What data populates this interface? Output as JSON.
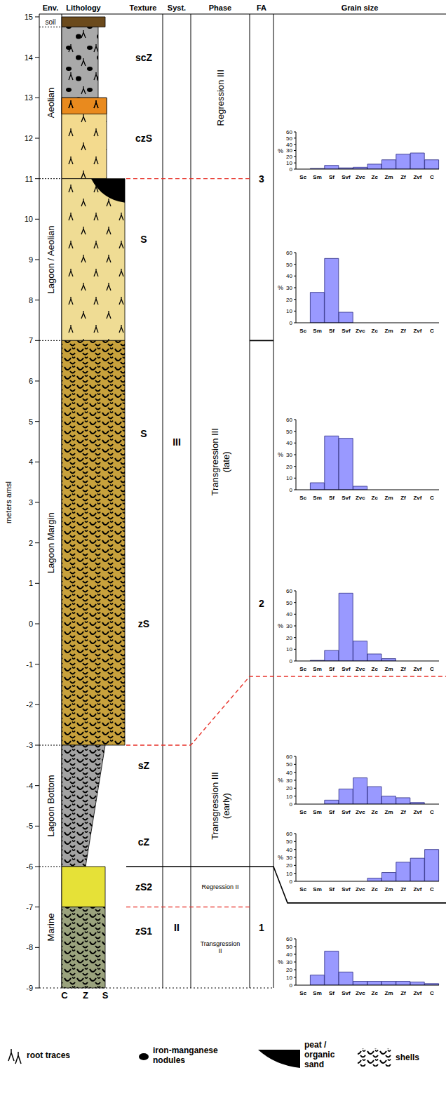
{
  "header": [
    "Env.",
    "Lithology",
    "Texture",
    "Syst.",
    "Phase",
    "FA",
    "Grain size"
  ],
  "axis": {
    "label": "meters amsl",
    "ylim": [
      -9,
      15
    ],
    "yticks": [
      -9,
      -8,
      -7,
      -6,
      -5,
      -4,
      -3,
      -2,
      -1,
      0,
      1,
      2,
      3,
      4,
      5,
      6,
      7,
      8,
      9,
      10,
      11,
      12,
      13,
      14,
      15
    ]
  },
  "environments": [
    {
      "label": "soil",
      "top": 15,
      "bottom": 14.75
    },
    {
      "label": "Aeolian",
      "top": 14.75,
      "bottom": 11
    },
    {
      "label": "Lagoon / Aeolian",
      "top": 11,
      "bottom": 7
    },
    {
      "label": "Lagoon Margin",
      "top": 7,
      "bottom": -3
    },
    {
      "label": "Lagoon Bottom",
      "top": -3,
      "bottom": -6
    },
    {
      "label": "Marine",
      "top": -6,
      "bottom": -9
    }
  ],
  "lithology": [
    {
      "top": 15,
      "bottom": 14.75,
      "color": "#6b4a1c"
    },
    {
      "top": 14.75,
      "bottom": 13,
      "color": "#a9a9a9"
    },
    {
      "top": 13,
      "bottom": 11,
      "color": "#f3da8e"
    },
    {
      "top": 13,
      "bottom": 12.6,
      "color": "#e98a1e"
    },
    {
      "top": 11,
      "bottom": 7,
      "color": "#efdc94"
    },
    {
      "top": 7,
      "bottom": -3,
      "color": "#c8a13c"
    },
    {
      "top": -3,
      "bottom": -6,
      "color": "#a3a3a3"
    },
    {
      "top": -6,
      "bottom": -7,
      "color": "#e6e137"
    },
    {
      "top": -7,
      "bottom": -9,
      "color": "#9aa27d"
    }
  ],
  "width_scale": [
    "C",
    "Z",
    "S"
  ],
  "textures": [
    {
      "label": "scZ",
      "depth": 14
    },
    {
      "label": "czS",
      "depth": 12
    },
    {
      "label": "S",
      "depth": 9.5
    },
    {
      "label": "S",
      "depth": 4.7
    },
    {
      "label": "zS",
      "depth": 0
    },
    {
      "label": "sZ",
      "depth": -3.5
    },
    {
      "label": "cZ",
      "depth": -5.4
    },
    {
      "label": "zS2",
      "depth": -6.5
    },
    {
      "label": "zS1",
      "depth": -7.6
    }
  ],
  "systems": [
    {
      "label": "III",
      "top": 15,
      "bottom": -6
    },
    {
      "label": "II",
      "top": -6,
      "bottom": -9
    }
  ],
  "phases": [
    {
      "label": "Regression III",
      "top": 15,
      "bottom": 11
    },
    {
      "label": "Transgression III (late)",
      "top": 11,
      "bottom": -3
    },
    {
      "label": "Transgression III (early)",
      "top": -3,
      "bottom": -6
    },
    {
      "label": "Regression II",
      "top": -6,
      "bottom": -7
    },
    {
      "label": "Transgression II",
      "top": -7,
      "bottom": -9
    }
  ],
  "facies_associations": [
    {
      "label": "3",
      "top": 15,
      "bottom": 7
    },
    {
      "label": "2",
      "top": 7,
      "bottom": -6
    },
    {
      "label": "1",
      "top": -6,
      "bottom": -9
    }
  ],
  "boundaries": [
    {
      "depth": 11,
      "style": "dashed",
      "color": "#e8322a"
    },
    {
      "depth": -3,
      "depth_right": -1.3,
      "style": "dashed",
      "color": "#e8322a"
    },
    {
      "depth": -7,
      "style": "dashed",
      "color": "#e8322a"
    },
    {
      "depth": -6,
      "depth_right": -6.9,
      "style": "solid",
      "color": "#000000"
    },
    {
      "depth": 7,
      "style": "solid",
      "color": "#000000"
    }
  ],
  "key": [
    "root traces",
    "iron-manganese nodules",
    "peat / organic sand",
    "shells"
  ],
  "chart_data": [
    {
      "type": "bar",
      "categories": [
        "Sc",
        "Sm",
        "Sf",
        "Svf",
        "Zvc",
        "Zc",
        "Zm",
        "Zf",
        "Zvf",
        "C"
      ],
      "values": [
        0,
        1,
        6,
        2,
        3,
        8,
        15,
        24,
        26,
        15
      ],
      "ylim": [
        0,
        60
      ],
      "yticks": [
        0,
        10,
        20,
        30,
        40,
        50,
        60
      ],
      "y_label": "%",
      "color": "#9999ff"
    },
    {
      "type": "bar",
      "categories": [
        "Sc",
        "Sm",
        "Sf",
        "Svf",
        "Zvc",
        "Zc",
        "Zm",
        "Zf",
        "Zvf",
        "C"
      ],
      "values": [
        0,
        26,
        55,
        9,
        0,
        0,
        0,
        0,
        0,
        0
      ],
      "ylim": [
        0,
        60
      ],
      "yticks": [
        0,
        10,
        20,
        30,
        40,
        50,
        60
      ],
      "y_label": "%",
      "color": "#9999ff"
    },
    {
      "type": "bar",
      "categories": [
        "Sc",
        "Sm",
        "Sf",
        "Svf",
        "Zvc",
        "Zc",
        "Zm",
        "Zf",
        "Zvf",
        "C"
      ],
      "values": [
        0,
        6,
        46,
        44,
        3,
        0,
        0,
        0,
        0,
        0
      ],
      "ylim": [
        0,
        60
      ],
      "yticks": [
        0,
        10,
        20,
        30,
        40,
        50,
        60
      ],
      "y_label": "%",
      "color": "#9999ff"
    },
    {
      "type": "bar",
      "categories": [
        "Sc",
        "Sm",
        "Sf",
        "Svf",
        "Zvc",
        "Zc",
        "Zm",
        "Zf",
        "Zvf",
        "C"
      ],
      "values": [
        0,
        0.5,
        9,
        58,
        17,
        6,
        2,
        0,
        0,
        0
      ],
      "ylim": [
        0,
        60
      ],
      "yticks": [
        0,
        10,
        20,
        30,
        40,
        50,
        60
      ],
      "y_label": "%",
      "color": "#9999ff"
    },
    {
      "type": "bar",
      "categories": [
        "Sc",
        "Sm",
        "Sf",
        "Svf",
        "Zvc",
        "Zc",
        "Zm",
        "Zf",
        "Zvf",
        "C"
      ],
      "values": [
        0,
        0,
        5,
        19,
        33,
        22,
        10,
        8,
        2,
        0
      ],
      "ylim": [
        0,
        60
      ],
      "yticks": [
        0,
        10,
        20,
        30,
        40,
        50,
        60
      ],
      "y_label": "%",
      "color": "#9999ff"
    },
    {
      "type": "bar",
      "categories": [
        "Sc",
        "Sm",
        "Sf",
        "Svf",
        "Zvc",
        "Zc",
        "Zm",
        "Zf",
        "Zvf",
        "C"
      ],
      "values": [
        0,
        0,
        0,
        0,
        0,
        4,
        11,
        24,
        29,
        40
      ],
      "ylim": [
        0,
        60
      ],
      "yticks": [
        0,
        10,
        20,
        30,
        40,
        50,
        60
      ],
      "y_label": "%",
      "color": "#9999ff"
    },
    {
      "type": "bar",
      "categories": [
        "Sc",
        "Sm",
        "Sf",
        "Svf",
        "Zvc",
        "Zc",
        "Zm",
        "Zf",
        "Zvf",
        "C"
      ],
      "values": [
        0,
        13,
        44,
        17,
        5,
        5,
        5,
        5,
        4,
        2
      ],
      "ylim": [
        0,
        60
      ],
      "yticks": [
        0,
        10,
        20,
        30,
        40,
        50,
        60
      ],
      "y_label": "%",
      "color": "#9999ff"
    }
  ]
}
